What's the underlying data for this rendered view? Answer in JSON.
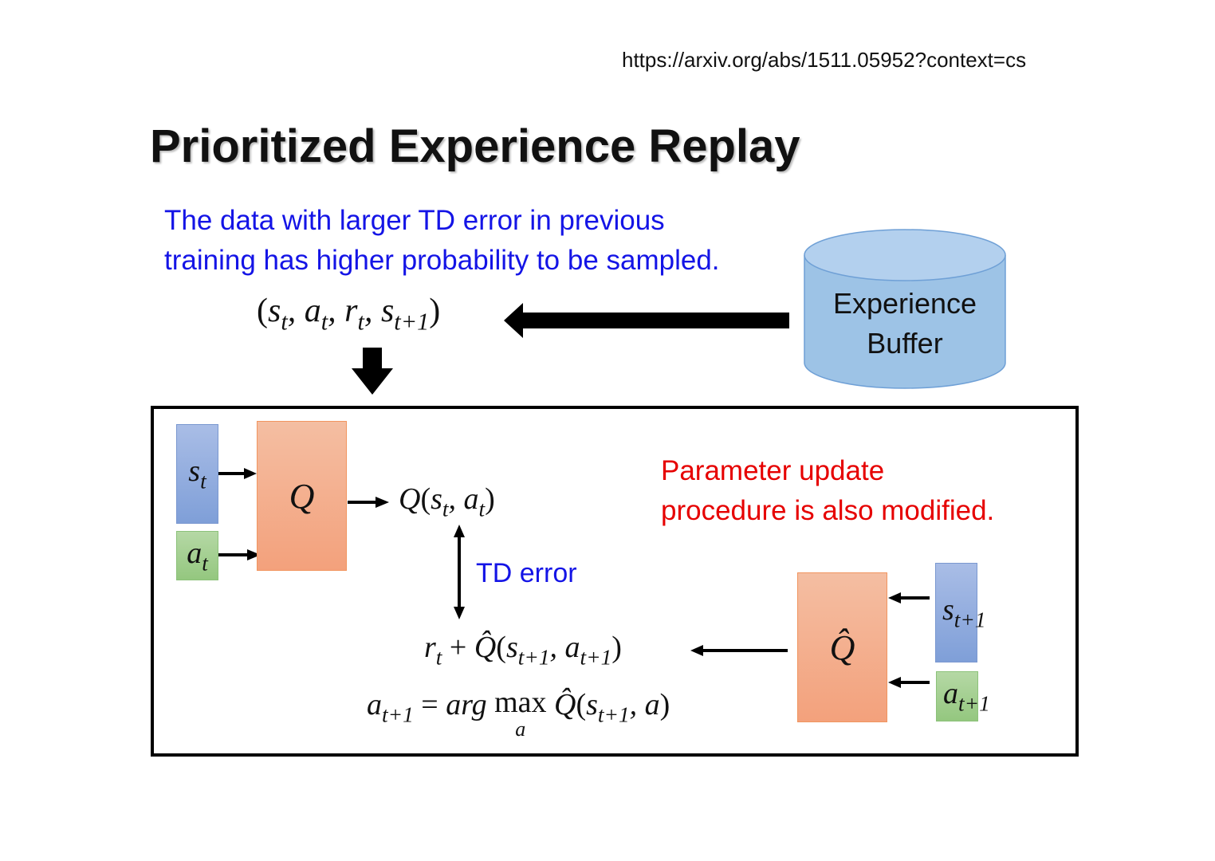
{
  "source_url": "https://arxiv.org/abs/1511.05952?context=cs",
  "title": "Prioritized Experience Replay",
  "note_blue": [
    "The data with larger TD error in previous",
    "training has higher probability to be sampled."
  ],
  "buffer_label": [
    "Experience",
    "Buffer"
  ],
  "note_red": [
    "Parameter update",
    "procedure is also modified."
  ],
  "td_error_label": "TD error",
  "colors": {
    "blue_text": "#1414e6",
    "red_text": "#e60000",
    "state_box": "#8fa9de",
    "action_box": "#a5cf92",
    "q_box": "#f3ad8c",
    "buffer": "#9dc3e6"
  },
  "math": {
    "tuple": {
      "open": "(",
      "s": "s",
      "t": "t",
      "a": "a",
      "r": "r",
      "s_next": "s",
      "t1": "t+1",
      "close": ")",
      "comma": ","
    },
    "q": "Q",
    "q_hat": "Q̂",
    "q_output": {
      "q": "Q",
      "open": "(",
      "s": "s",
      "t": "t",
      "a": "a",
      "close": ")",
      "comma": ","
    },
    "target": {
      "r": "r",
      "t": "t",
      "plus": "+",
      "qhat": "Q̂",
      "open": "(",
      "s": "s",
      "t1": "t+1",
      "a": "a",
      "close": ")",
      "comma": ","
    },
    "argmax": {
      "a": "a",
      "t1": "t+1",
      "eq": "=",
      "arg": "arg",
      "max": "max",
      "under": "a",
      "qhat": "Q̂",
      "open": "(",
      "s": "s",
      "comma": ",",
      "a2": "a",
      "close": ")"
    },
    "s_t": {
      "s": "s",
      "sub": "t"
    },
    "a_t": {
      "a": "a",
      "sub": "t"
    },
    "s_t1": {
      "s": "s",
      "sub": "t+1"
    },
    "a_t1": {
      "a": "a",
      "sub": "t+1"
    }
  }
}
